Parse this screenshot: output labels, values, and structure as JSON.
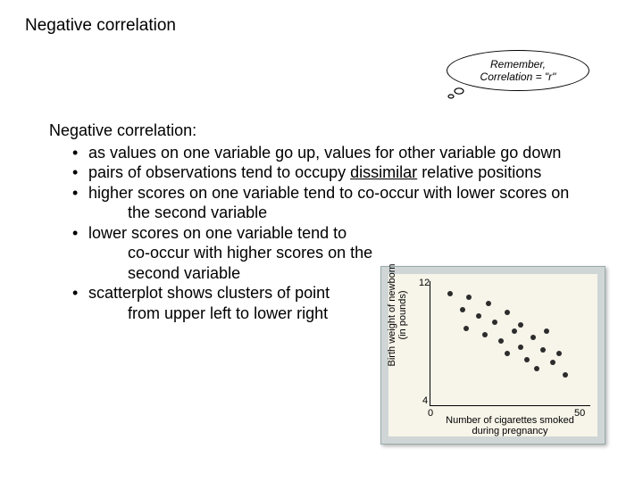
{
  "title": "Negative correlation",
  "bubble": {
    "line1": "Remember,",
    "line2": "Correlation = \"r\""
  },
  "subheading": "Negative correlation:",
  "bullets": [
    {
      "text": "as values on one variable go up, values for other variable go down"
    },
    {
      "text_before": "pairs of observations tend to occupy ",
      "underline": "dissimilar",
      "text_after": " relative positions"
    },
    {
      "text": "higher scores on one variable tend to co-occur with lower scores on",
      "cont": "the second variable"
    },
    {
      "text": "lower scores on one variable tend to",
      "cont": "co-occur with higher scores on the",
      "cont2": "second variable"
    },
    {
      "text": "scatterplot shows clusters of point",
      "cont": "from upper left to lower right"
    }
  ],
  "chart": {
    "type": "scatter",
    "background_color": "#f7f4e9",
    "frame_color": "#d0d6d6",
    "dot_color": "#2c2c2c",
    "dot_radius": 3,
    "xlabel_line1": "Number of cigarettes smoked",
    "xlabel_line2": "during pregnancy",
    "ylabel_line1": "Birth weight of newborn",
    "ylabel_line2": "(in pounds)",
    "xlim": [
      0,
      50
    ],
    "ylim": [
      4,
      12
    ],
    "xtick_labels": [
      "0",
      "50"
    ],
    "ytick_labels": [
      "12",
      "4"
    ],
    "points": [
      {
        "x": 6,
        "y": 11.2
      },
      {
        "x": 10,
        "y": 10.2
      },
      {
        "x": 12,
        "y": 11.0
      },
      {
        "x": 11,
        "y": 9.0
      },
      {
        "x": 15,
        "y": 9.8
      },
      {
        "x": 18,
        "y": 10.6
      },
      {
        "x": 17,
        "y": 8.6
      },
      {
        "x": 20,
        "y": 9.4
      },
      {
        "x": 22,
        "y": 8.2
      },
      {
        "x": 24,
        "y": 10.0
      },
      {
        "x": 24,
        "y": 7.4
      },
      {
        "x": 26,
        "y": 8.8
      },
      {
        "x": 28,
        "y": 9.2
      },
      {
        "x": 28,
        "y": 7.8
      },
      {
        "x": 30,
        "y": 7.0
      },
      {
        "x": 32,
        "y": 8.4
      },
      {
        "x": 33,
        "y": 6.4
      },
      {
        "x": 35,
        "y": 7.6
      },
      {
        "x": 36,
        "y": 8.8
      },
      {
        "x": 38,
        "y": 6.8
      },
      {
        "x": 40,
        "y": 7.4
      },
      {
        "x": 42,
        "y": 6.0
      }
    ]
  }
}
